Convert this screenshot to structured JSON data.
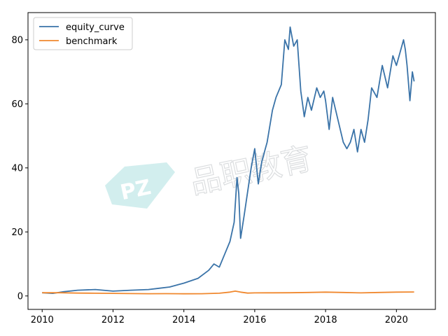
{
  "watermark": {
    "logo_letters": "PZ",
    "chinese": "品职教育",
    "color": "#7fd0cf"
  },
  "chart_data": {
    "type": "line",
    "title": "",
    "xlabel": "",
    "ylabel": "",
    "xlim": [
      2009.6,
      2021.1
    ],
    "ylim": [
      -4.2,
      88.5
    ],
    "x_ticks": [
      2010,
      2012,
      2014,
      2016,
      2018,
      2020
    ],
    "x_tick_labels": [
      "2010",
      "2012",
      "2014",
      "2016",
      "2018",
      "2020"
    ],
    "y_ticks": [
      0,
      20,
      40,
      60,
      80
    ],
    "y_tick_labels": [
      "0",
      "20",
      "40",
      "60",
      "80"
    ],
    "grid": false,
    "legend_position": "top-left",
    "series": [
      {
        "name": "equity_curve",
        "color": "#3a73a8",
        "x": [
          2010.0,
          2010.3,
          2010.6,
          2011.0,
          2011.5,
          2012.0,
          2012.5,
          2013.0,
          2013.3,
          2013.6,
          2014.0,
          2014.4,
          2014.7,
          2014.85,
          2015.0,
          2015.15,
          2015.3,
          2015.42,
          2015.5,
          2015.55,
          2015.6,
          2015.7,
          2015.9,
          2016.0,
          2016.1,
          2016.2,
          2016.35,
          2016.5,
          2016.6,
          2016.75,
          2016.85,
          2016.95,
          2017.0,
          2017.1,
          2017.2,
          2017.3,
          2017.4,
          2017.5,
          2017.6,
          2017.75,
          2017.85,
          2017.95,
          2018.0,
          2018.1,
          2018.2,
          2018.35,
          2018.5,
          2018.6,
          2018.7,
          2018.8,
          2018.9,
          2019.0,
          2019.1,
          2019.2,
          2019.3,
          2019.45,
          2019.6,
          2019.75,
          2019.9,
          2020.0,
          2020.1,
          2020.2,
          2020.25,
          2020.3,
          2020.38,
          2020.45,
          2020.5
        ],
        "values": [
          1,
          0.8,
          1.3,
          1.8,
          2.0,
          1.5,
          1.8,
          2.0,
          2.4,
          2.8,
          4.0,
          5.5,
          8.0,
          10.0,
          9.0,
          13.0,
          17.0,
          23.0,
          37.0,
          32.0,
          18.0,
          25.0,
          40.0,
          46.0,
          35.0,
          42.0,
          48.0,
          58.0,
          62.0,
          66.0,
          80.0,
          77.0,
          84.0,
          78.0,
          80.0,
          64.0,
          56.0,
          62.0,
          58.0,
          65.0,
          62.0,
          64.0,
          61.0,
          52.0,
          62.0,
          55.0,
          48.0,
          46.0,
          48.0,
          52.0,
          45.0,
          52.0,
          48.0,
          55.0,
          65.0,
          62.0,
          72.0,
          65.0,
          75.0,
          72.0,
          76.0,
          80.0,
          77.0,
          72.0,
          61.0,
          70.0,
          67.0
        ]
      },
      {
        "name": "benchmark",
        "color": "#f0882e",
        "x": [
          2010.0,
          2010.5,
          2011.0,
          2011.5,
          2012.0,
          2012.5,
          2013.0,
          2013.5,
          2014.0,
          2014.5,
          2015.0,
          2015.3,
          2015.45,
          2015.6,
          2015.8,
          2016.0,
          2016.5,
          2017.0,
          2017.5,
          2018.0,
          2018.5,
          2019.0,
          2019.5,
          2020.0,
          2020.5
        ],
        "values": [
          1.0,
          1.0,
          0.9,
          0.85,
          0.8,
          0.75,
          0.7,
          0.72,
          0.68,
          0.7,
          0.85,
          1.2,
          1.5,
          1.2,
          0.9,
          0.95,
          0.98,
          1.0,
          1.1,
          1.2,
          1.1,
          0.95,
          1.1,
          1.2,
          1.25
        ]
      }
    ]
  }
}
